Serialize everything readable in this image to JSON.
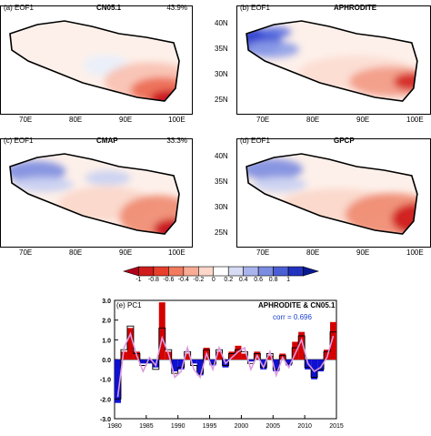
{
  "maps": [
    {
      "panel": "(a) EOF1",
      "title": "CN05.1",
      "variance": "43.9%",
      "show_lat": false,
      "pattern": "a"
    },
    {
      "panel": "(b) EOF1",
      "title": "APHRODITE",
      "variance": "",
      "show_lat": true,
      "pattern": "b"
    },
    {
      "panel": "(c) EOF1",
      "title": "CMAP",
      "variance": "33.3%",
      "show_lat": false,
      "pattern": "c"
    },
    {
      "panel": "(d) EOF1",
      "title": "GPCP",
      "variance": "",
      "show_lat": true,
      "pattern": "d"
    }
  ],
  "map_axes": {
    "lon_ticks": [
      "70E",
      "80E",
      "90E",
      "100E"
    ],
    "lat_ticks": [
      "40N",
      "35N",
      "30N",
      "25N"
    ]
  },
  "colorbar": {
    "labels": [
      "-1",
      "-0.8",
      "-0.6",
      "-0.4",
      "-0.2",
      "0",
      "0.2",
      "0.4",
      "0.6",
      "0.8",
      "1"
    ],
    "colors": [
      "#b2001a",
      "#d01c1c",
      "#e8402c",
      "#f27a5f",
      "#f8ab95",
      "#fbd6c9",
      "#ffffff",
      "#d7dbf3",
      "#a9b4ec",
      "#7c8ce0",
      "#4b5fd4",
      "#2233c0",
      "#0a1890"
    ]
  },
  "chart_data": {
    "type": "bar",
    "title": "(e) PC1",
    "annotation": "APHRODITE & CN05.1",
    "corr_label": "corr = 0.696",
    "x": [
      1980,
      1981,
      1982,
      1983,
      1984,
      1985,
      1986,
      1987,
      1988,
      1989,
      1990,
      1991,
      1992,
      1993,
      1994,
      1995,
      1996,
      1997,
      1998,
      1999,
      2000,
      2001,
      2002,
      2003,
      2004,
      2005,
      2006,
      2007,
      2008,
      2009,
      2010,
      2011,
      2012,
      2013,
      2014
    ],
    "xlim": [
      1980,
      2015
    ],
    "xticks": [
      1980,
      1985,
      1990,
      1995,
      2000,
      2005,
      2010,
      2015
    ],
    "ylim": [
      -3.0,
      3.0
    ],
    "yticks": [
      "3.0",
      "2.0",
      "1.0",
      "0.0",
      "-1.0",
      "-2.0",
      "-3.0"
    ],
    "series": [
      {
        "values": [
          -2.2,
          0.4,
          1.6,
          0.4,
          -0.2,
          -0.2,
          -0.4,
          2.9,
          0.4,
          -0.6,
          -0.5,
          0.3,
          -0.2,
          -0.8,
          0.6,
          -0.3,
          0.4,
          -0.4,
          0.4,
          0.7,
          0.3,
          -0.1,
          0.4,
          -0.5,
          0.2,
          -0.6,
          0.3,
          -0.3,
          0.9,
          1.4,
          -0.5,
          -1.0,
          -0.6,
          0.5,
          1.9
        ],
        "color": "#d40000"
      },
      {
        "values": [
          -2.0,
          0.5,
          1.7,
          0.3,
          -0.3,
          -0.1,
          -0.5,
          1.6,
          0.5,
          -0.7,
          -0.4,
          0.4,
          -0.3,
          -0.7,
          0.5,
          -0.2,
          0.5,
          -0.3,
          0.3,
          0.5,
          0.4,
          -0.2,
          0.3,
          -0.4,
          0.3,
          -0.5,
          0.2,
          -0.2,
          0.6,
          1.2,
          -0.4,
          -0.9,
          -0.5,
          0.4,
          1.4
        ],
        "color": "#000000"
      },
      {
        "values": [
          -1.9,
          0.6,
          1.3,
          0.2,
          -0.6,
          0.1,
          -0.3,
          1.1,
          0.3,
          -0.9,
          -0.6,
          0.6,
          -0.5,
          -0.9,
          0.3,
          -0.5,
          0.6,
          -0.2,
          0.1,
          0.4,
          0.6,
          -0.5,
          0.2,
          -0.4,
          0.4,
          -0.8,
          0.1,
          -0.4,
          0.3,
          1.0,
          -0.2,
          -0.6,
          -0.4,
          0.1,
          1.2
        ],
        "color": "#dc9be0"
      }
    ]
  }
}
